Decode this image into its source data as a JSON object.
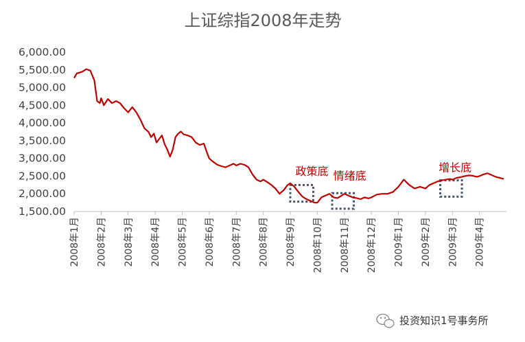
{
  "chart_data": {
    "type": "line",
    "title": "上证综指2008年走势",
    "xlabel": "",
    "ylabel": "",
    "ylim": [
      1500,
      6000
    ],
    "yticks": [
      "1,500.00",
      "2,000.00",
      "2,500.00",
      "3,000.00",
      "3,500.00",
      "4,000.00",
      "4,500.00",
      "5,000.00",
      "5,500.00",
      "6,000.00"
    ],
    "xticks": [
      "2008年1月",
      "2008年2月",
      "2008年3月",
      "2008年4月",
      "2008年5月",
      "2008年6月",
      "2008年7月",
      "2008年8月",
      "2008年9月",
      "2008年10月",
      "2008年11月",
      "2008年12月",
      "2009年1月",
      "2009年2月",
      "2009年3月",
      "2009年4月"
    ],
    "series": [
      {
        "color": "#c00000",
        "x": [
          0,
          0.1,
          0.3,
          0.45,
          0.6,
          0.75,
          0.85,
          0.95,
          1.0,
          1.1,
          1.25,
          1.4,
          1.55,
          1.7,
          1.85,
          2.0,
          2.15,
          2.3,
          2.45,
          2.6,
          2.75,
          2.85,
          2.95,
          3.05,
          3.15,
          3.25,
          3.35,
          3.45,
          3.55,
          3.65,
          3.75,
          3.85,
          3.95,
          4.05,
          4.2,
          4.35,
          4.5,
          4.65,
          4.8,
          4.9,
          5.0,
          5.15,
          5.3,
          5.45,
          5.6,
          5.75,
          5.9,
          6.0,
          6.15,
          6.3,
          6.45,
          6.6,
          6.75,
          6.9,
          7.0,
          7.15,
          7.3,
          7.45,
          7.6,
          7.75,
          7.9,
          8.0,
          8.15,
          8.3,
          8.45,
          8.6,
          8.75,
          8.9,
          9.0,
          9.15,
          9.3,
          9.45,
          9.6,
          9.75,
          9.9,
          10.0,
          10.15,
          10.3,
          10.45,
          10.6,
          10.75,
          10.9,
          11.0,
          11.2,
          11.4,
          11.6,
          11.8,
          12.0,
          12.2,
          12.4,
          12.6,
          12.8,
          13.0,
          13.15,
          13.3,
          13.45,
          13.6,
          13.75,
          13.9,
          14.0,
          14.15,
          14.3,
          14.45,
          14.6,
          14.75,
          14.9,
          15.0,
          15.15,
          15.3,
          15.45,
          15.6,
          15.75,
          15.9
        ],
        "y": [
          5270,
          5400,
          5450,
          5520,
          5480,
          5200,
          4620,
          4560,
          4700,
          4500,
          4680,
          4560,
          4620,
          4560,
          4420,
          4300,
          4450,
          4300,
          4100,
          3850,
          3750,
          3600,
          3700,
          3450,
          3550,
          3650,
          3400,
          3250,
          3050,
          3250,
          3600,
          3700,
          3760,
          3680,
          3650,
          3600,
          3450,
          3380,
          3420,
          3200,
          3000,
          2900,
          2820,
          2780,
          2750,
          2800,
          2850,
          2800,
          2850,
          2820,
          2750,
          2550,
          2400,
          2350,
          2400,
          2330,
          2250,
          2150,
          2000,
          2100,
          2250,
          2300,
          2200,
          2050,
          1920,
          1850,
          1800,
          1750,
          1750,
          1900,
          1950,
          2000,
          1900,
          1880,
          1950,
          2000,
          1950,
          1900,
          1880,
          1850,
          1900,
          1870,
          1900,
          1980,
          2000,
          2000,
          2050,
          2200,
          2400,
          2250,
          2150,
          2200,
          2150,
          2250,
          2300,
          2350,
          2380,
          2400,
          2420,
          2400,
          2450,
          2470,
          2500,
          2520,
          2510,
          2480,
          2500,
          2550,
          2580,
          2530,
          2480,
          2450,
          2420
        ]
      }
    ],
    "annotations": [
      {
        "text": "政策底",
        "x": 8.8,
        "y": 2530
      },
      {
        "text": "情绪底",
        "x": 10.2,
        "y": 2400
      },
      {
        "text": "增长底",
        "x": 14.1,
        "y": 2630
      }
    ],
    "highlight_boxes": [
      {
        "x0": 8.0,
        "x1": 8.85,
        "y0": 1780,
        "y1": 2250
      },
      {
        "x0": 9.55,
        "x1": 10.35,
        "y0": 1580,
        "y1": 2020
      },
      {
        "x0": 13.55,
        "x1": 14.35,
        "y0": 1920,
        "y1": 2380
      }
    ],
    "watermark": "投资知识1号事务所",
    "grid": false,
    "legend": "none"
  }
}
